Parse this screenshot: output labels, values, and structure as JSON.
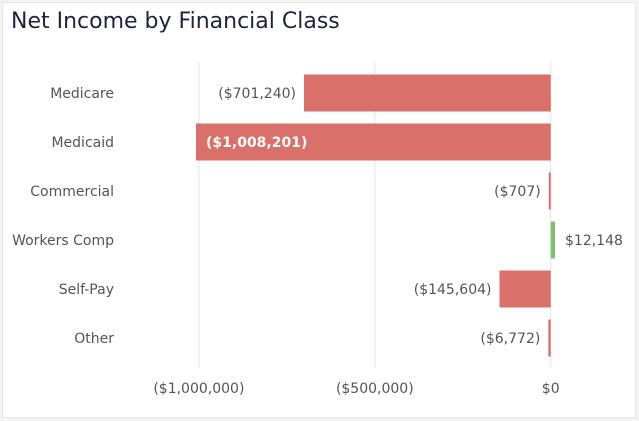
{
  "chart_data": {
    "type": "bar",
    "orientation": "horizontal",
    "title": "Net Income by Financial Class",
    "xlabel": "",
    "ylabel": "",
    "categories": [
      "Medicare",
      "Medicaid",
      "Commercial",
      "Workers Comp",
      "Self-Pay",
      "Other"
    ],
    "values": [
      -701240,
      -1008201,
      -707,
      12148,
      -145604,
      -6772
    ],
    "data_labels": [
      "($701,240)",
      "($1,008,201)",
      "($707)",
      "$12,148",
      "($145,604)",
      "($6,772)"
    ],
    "x_ticks": [
      -1000000,
      -500000,
      0
    ],
    "x_tick_labels": [
      "($1,000,000)",
      "($500,000)",
      "$0"
    ],
    "xlim": [
      -1008201,
      12148
    ],
    "grid": true,
    "legend": "none",
    "colors": {
      "negative": "#d9706a",
      "positive": "#7fbf72",
      "grid": "#e4e4e4"
    }
  }
}
